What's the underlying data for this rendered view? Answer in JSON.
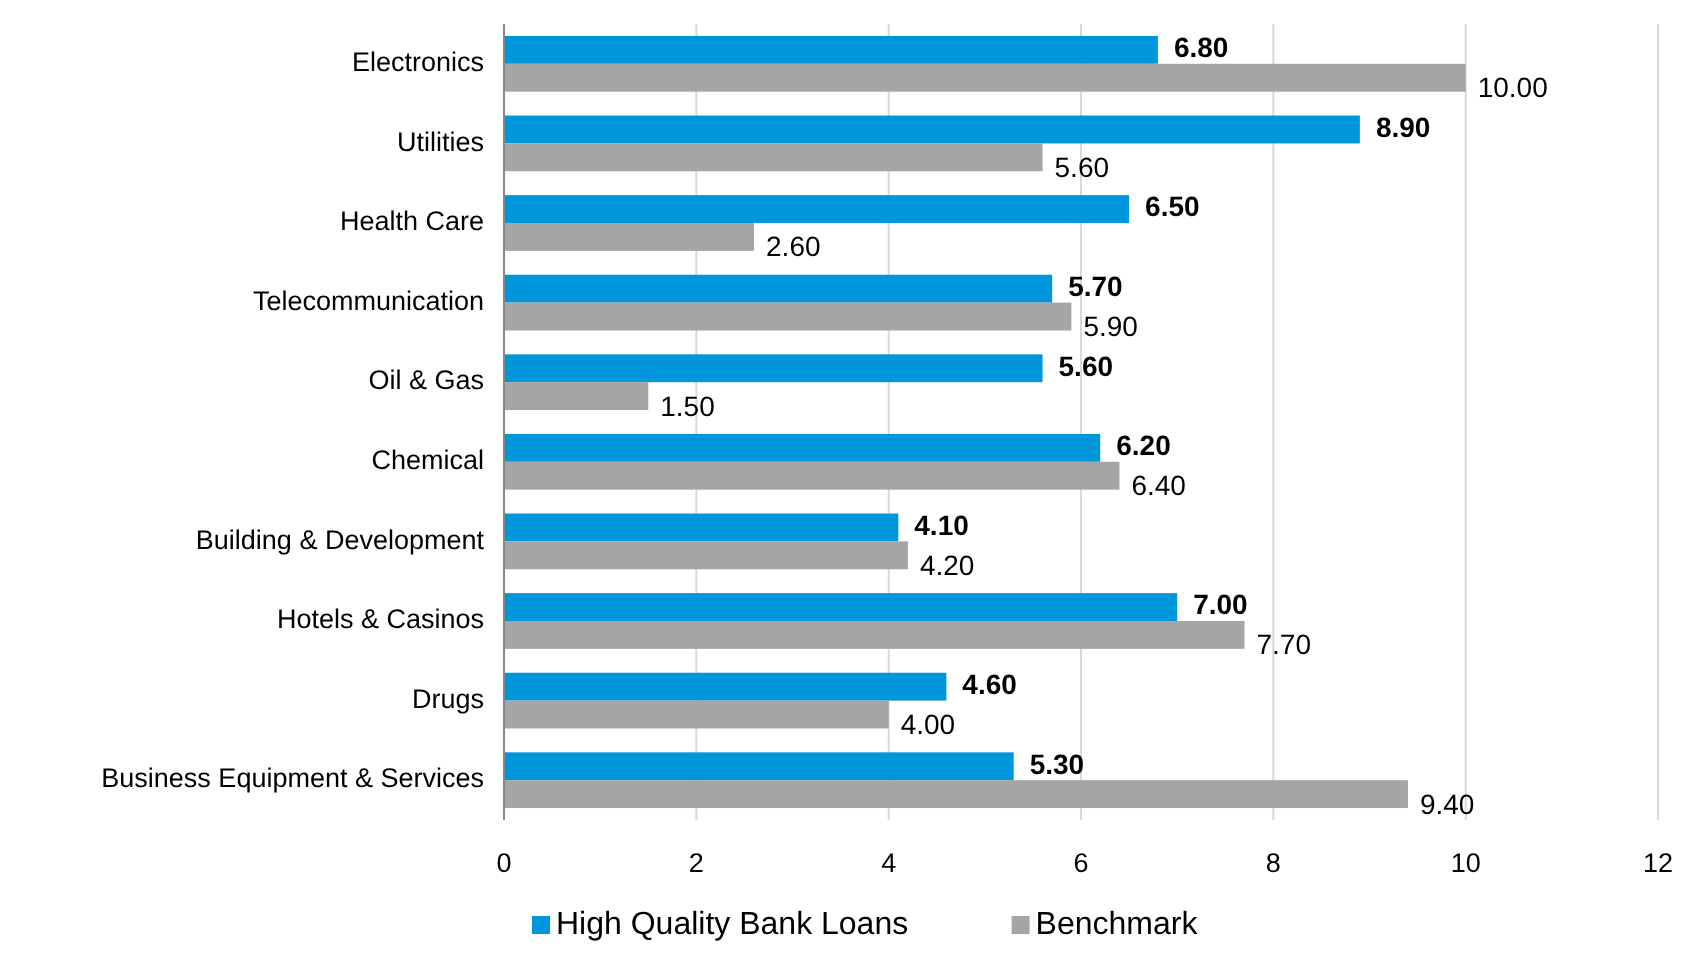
{
  "chart_data": {
    "type": "bar",
    "orientation": "horizontal",
    "categories": [
      "Electronics",
      "Utilities",
      "Health Care",
      "Telecommunication",
      "Oil & Gas",
      "Chemical",
      "Building & Development",
      "Hotels & Casinos",
      "Drugs",
      "Business Equipment & Services"
    ],
    "series": [
      {
        "name": "High Quality Bank Loans",
        "color": "#0096db",
        "values": [
          6.8,
          8.9,
          6.5,
          5.7,
          5.6,
          6.2,
          4.1,
          7.0,
          4.6,
          5.3
        ],
        "value_labels": [
          "6.80",
          "8.90",
          "6.50",
          "5.70",
          "5.60",
          "6.20",
          "4.10",
          "7.00",
          "4.60",
          "5.30"
        ]
      },
      {
        "name": "Benchmark",
        "color": "#a5a5a5",
        "values": [
          10.0,
          5.6,
          2.6,
          5.9,
          1.5,
          6.4,
          4.2,
          7.7,
          4.0,
          9.4
        ],
        "value_labels": [
          "10.00",
          "5.60",
          "2.60",
          "5.90",
          "1.50",
          "6.40",
          "4.20",
          "7.70",
          "4.00",
          "9.40"
        ]
      }
    ],
    "xlim": [
      0,
      12
    ],
    "xticks": [
      0,
      2,
      4,
      6,
      8,
      10,
      12
    ],
    "grid": "x",
    "legend": "bottom"
  }
}
